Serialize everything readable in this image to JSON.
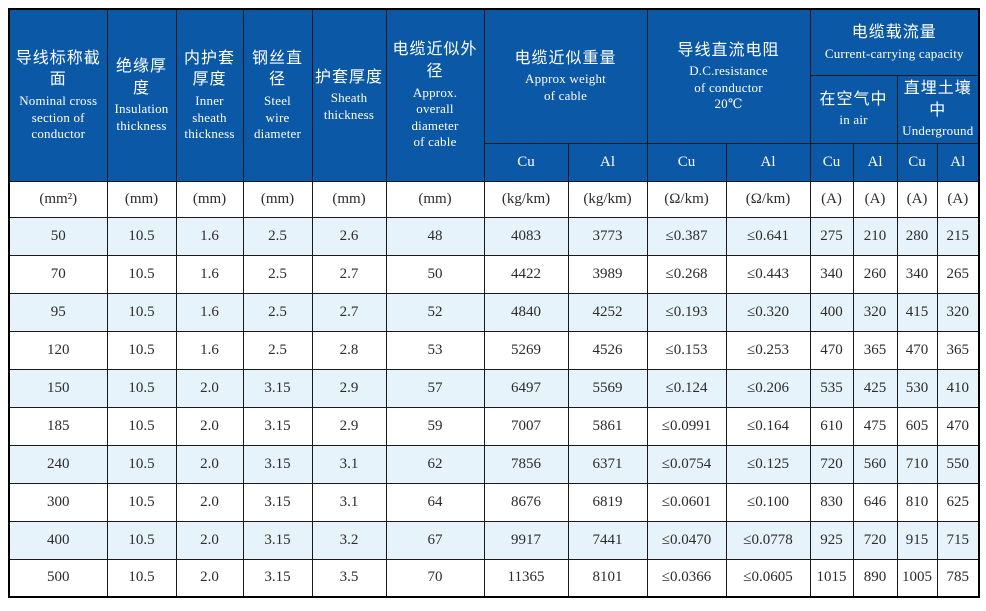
{
  "colors": {
    "header_bg": "#0a58a6",
    "header_text": "#ffffff",
    "zebra_bg": "#e7f3fb",
    "row_bg": "#ffffff",
    "border": "#1a1a1a",
    "data_text": "#2b2b2b"
  },
  "header": {
    "columns": [
      {
        "zh": "导线标称截面",
        "en": "Nominal cross\nsection of\nconductor"
      },
      {
        "zh": "绝缘厚度",
        "en": "Insulation\nthickness"
      },
      {
        "zh": "内护套\n厚度",
        "en": "Inner\nsheath\nthickness"
      },
      {
        "zh": "钢丝直径",
        "en": "Steel\nwire\ndiameter"
      },
      {
        "zh": "护套厚度",
        "en": "Sheath\nthickness"
      },
      {
        "zh": "电缆近似外径",
        "en": "Approx.\noverall\ndiameter\nof cable"
      }
    ],
    "weight": {
      "zh": "电缆近似重量",
      "en": "Approx weight\nof cable"
    },
    "resistance": {
      "zh": "导线直流电阻",
      "en": "D.C.resistance\nof conductor\n20℃"
    },
    "capacity": {
      "zh": "电缆载流量",
      "en": "Current-carrying capacity"
    },
    "in_air": {
      "zh": "在空气中",
      "en": "in air"
    },
    "underground": {
      "zh": "直埋土壤中",
      "en": "Underground"
    },
    "metal_row": [
      "Cu",
      "Al",
      "Cu",
      "Al",
      "Cu",
      "Al",
      "Cu",
      "Al"
    ]
  },
  "units": [
    "(mm²)",
    "(mm)",
    "(mm)",
    "(mm)",
    "(mm)",
    "(mm)",
    "(kg/km)",
    "(kg/km)",
    "(Ω/km)",
    "(Ω/km)",
    "(A)",
    "(A)",
    "(A)",
    "(A)"
  ],
  "rows": [
    [
      "50",
      "10.5",
      "1.6",
      "2.5",
      "2.6",
      "48",
      "4083",
      "3773",
      "≤0.387",
      "≤0.641",
      "275",
      "210",
      "280",
      "215"
    ],
    [
      "70",
      "10.5",
      "1.6",
      "2.5",
      "2.7",
      "50",
      "4422",
      "3989",
      "≤0.268",
      "≤0.443",
      "340",
      "260",
      "340",
      "265"
    ],
    [
      "95",
      "10.5",
      "1.6",
      "2.5",
      "2.7",
      "52",
      "4840",
      "4252",
      "≤0.193",
      "≤0.320",
      "400",
      "320",
      "415",
      "320"
    ],
    [
      "120",
      "10.5",
      "1.6",
      "2.5",
      "2.8",
      "53",
      "5269",
      "4526",
      "≤0.153",
      "≤0.253",
      "470",
      "365",
      "470",
      "365"
    ],
    [
      "150",
      "10.5",
      "2.0",
      "3.15",
      "2.9",
      "57",
      "6497",
      "5569",
      "≤0.124",
      "≤0.206",
      "535",
      "425",
      "530",
      "410"
    ],
    [
      "185",
      "10.5",
      "2.0",
      "3.15",
      "2.9",
      "59",
      "7007",
      "5861",
      "≤0.0991",
      "≤0.164",
      "610",
      "475",
      "605",
      "470"
    ],
    [
      "240",
      "10.5",
      "2.0",
      "3.15",
      "3.1",
      "62",
      "7856",
      "6371",
      "≤0.0754",
      "≤0.125",
      "720",
      "560",
      "710",
      "550"
    ],
    [
      "300",
      "10.5",
      "2.0",
      "3.15",
      "3.1",
      "64",
      "8676",
      "6819",
      "≤0.0601",
      "≤0.100",
      "830",
      "646",
      "810",
      "625"
    ],
    [
      "400",
      "10.5",
      "2.0",
      "3.15",
      "3.2",
      "67",
      "9917",
      "7441",
      "≤0.0470",
      "≤0.0778",
      "925",
      "720",
      "915",
      "715"
    ],
    [
      "500",
      "10.5",
      "2.0",
      "3.15",
      "3.5",
      "70",
      "11365",
      "8101",
      "≤0.0366",
      "≤0.0605",
      "1015",
      "890",
      "1005",
      "785"
    ]
  ]
}
